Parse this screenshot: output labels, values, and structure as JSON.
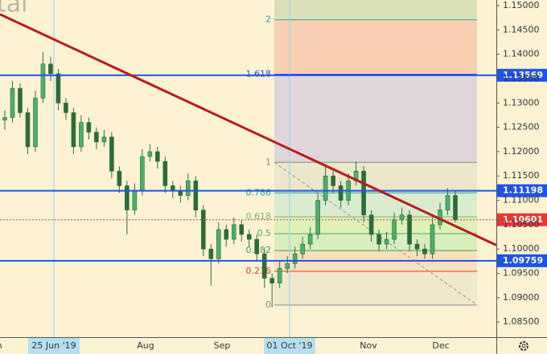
{
  "chart_data": {
    "type": "candlestick",
    "watermark": "tal",
    "ylim": [
      1.0819,
      1.15115
    ],
    "yticks": [
      {
        "value": 1.15,
        "label": "1.15000"
      },
      {
        "value": 1.145,
        "label": "1.14500"
      },
      {
        "value": 1.14,
        "label": "1.14000"
      },
      {
        "value": 1.135,
        "label": "1.13500"
      },
      {
        "value": 1.13,
        "label": "1.13000"
      },
      {
        "value": 1.125,
        "label": "1.12500"
      },
      {
        "value": 1.12,
        "label": "1.12000"
      },
      {
        "value": 1.115,
        "label": "1.11500"
      },
      {
        "value": 1.11,
        "label": "1.11000"
      },
      {
        "value": 1.105,
        "label": "1.10500"
      },
      {
        "value": 1.1,
        "label": "1.10000"
      },
      {
        "value": 1.095,
        "label": "1.09500"
      },
      {
        "value": 1.09,
        "label": "1.09000"
      },
      {
        "value": 1.085,
        "label": "1.08500"
      }
    ],
    "x_labels": [
      "Jun",
      "25 Jun '19",
      "Aug",
      "Sep",
      "01 Oct '19",
      "Nov",
      "Dec"
    ],
    "up_color": "#4caf6a",
    "down_color": "#2e6b3a",
    "open": [
      1.1265,
      1.127,
      1.133,
      1.128,
      1.121,
      1.131,
      1.138,
      1.136,
      1.13,
      1.128,
      1.121,
      1.126,
      1.124,
      1.122,
      1.123,
      1.116,
      1.113,
      1.108,
      1.112,
      1.119,
      1.12,
      1.118,
      1.113,
      1.112,
      1.111,
      1.114,
      1.108,
      1.1,
      1.098,
      1.104,
      1.102,
      1.105,
      1.103,
      1.102,
      1.099,
      1.094,
      1.093,
      1.096,
      1.097,
      1.099,
      1.101,
      1.103,
      1.11,
      1.115,
      1.113,
      1.11,
      1.114,
      1.116,
      1.107,
      1.103,
      1.101,
      1.102,
      1.106,
      1.107,
      1.101,
      1.1,
      1.099,
      1.105,
      1.108,
      1.111
    ],
    "high": [
      1.1285,
      1.1345,
      1.134,
      1.129,
      1.1325,
      1.1405,
      1.1395,
      1.137,
      1.131,
      1.129,
      1.1275,
      1.127,
      1.125,
      1.1245,
      1.124,
      1.117,
      1.114,
      1.1135,
      1.1205,
      1.1215,
      1.121,
      1.119,
      1.114,
      1.113,
      1.1155,
      1.115,
      1.109,
      1.101,
      1.1055,
      1.105,
      1.1065,
      1.106,
      1.104,
      1.103,
      1.1,
      1.095,
      1.0975,
      1.0985,
      1.1005,
      1.1025,
      1.1045,
      1.1115,
      1.1175,
      1.116,
      1.114,
      1.1155,
      1.118,
      1.117,
      1.108,
      1.104,
      1.1035,
      1.1075,
      1.1085,
      1.108,
      1.102,
      1.101,
      1.1065,
      1.1095,
      1.1125,
      1.112
    ],
    "low": [
      1.1245,
      1.126,
      1.127,
      1.1195,
      1.12,
      1.13,
      1.1345,
      1.1285,
      1.1265,
      1.1195,
      1.12,
      1.1225,
      1.1205,
      1.121,
      1.1145,
      1.1115,
      1.103,
      1.107,
      1.111,
      1.118,
      1.1165,
      1.1115,
      1.1105,
      1.1095,
      1.11,
      1.1065,
      1.0985,
      1.0925,
      1.097,
      1.1005,
      1.101,
      1.1015,
      1.1005,
      1.0975,
      1.092,
      1.088,
      1.092,
      1.095,
      1.096,
      1.098,
      1.1,
      1.102,
      1.109,
      1.1115,
      1.1085,
      1.109,
      1.113,
      1.1055,
      1.1015,
      1.0995,
      1.1,
      1.101,
      1.105,
      1.0995,
      1.0985,
      1.098,
      1.098,
      1.104,
      1.107,
      1.1055
    ],
    "close": [
      1.127,
      1.133,
      1.128,
      1.121,
      1.131,
      1.138,
      1.136,
      1.13,
      1.128,
      1.121,
      1.126,
      1.124,
      1.122,
      1.123,
      1.116,
      1.113,
      1.108,
      1.112,
      1.119,
      1.12,
      1.118,
      1.113,
      1.112,
      1.111,
      1.114,
      1.108,
      1.1,
      1.098,
      1.104,
      1.102,
      1.105,
      1.103,
      1.102,
      1.099,
      1.094,
      1.093,
      1.096,
      1.097,
      1.099,
      1.101,
      1.103,
      1.11,
      1.115,
      1.113,
      1.11,
      1.114,
      1.116,
      1.107,
      1.103,
      1.101,
      1.102,
      1.106,
      1.107,
      1.101,
      1.1,
      1.099,
      1.105,
      1.108,
      1.111,
      1.106
    ],
    "levels": [
      {
        "value": 1.13569,
        "color": "#1e53e5"
      },
      {
        "value": 1.11198,
        "color": "#1e53e5"
      },
      {
        "value": 1.09759,
        "color": "#1e53e5"
      }
    ],
    "last_price": 1.10601,
    "last_price_color": "#e53935",
    "trendline": [
      1.1482,
      1.1008
    ],
    "trendline_color": "#b71c1c",
    "fib": {
      "low": 1.0885,
      "high": 1.1178,
      "levels": [
        0,
        0.236,
        0.382,
        0.5,
        0.618,
        0.786,
        1,
        1.618,
        2
      ],
      "line_colors": [
        "#888888",
        "#e53935",
        "#43a047",
        "#4caf50",
        "#66bb6a",
        "#26a69a",
        "#888888",
        "#1e53e5",
        "#26a69a"
      ],
      "band_colors": [
        "#efe6cc",
        "#f6dcb7",
        "#d3ebbb",
        "#d9eeb4",
        "#d3eacb",
        "#e6e4c8",
        "#d8d0dc",
        "#f4c9a9",
        "#d6dcb4"
      ]
    }
  }
}
